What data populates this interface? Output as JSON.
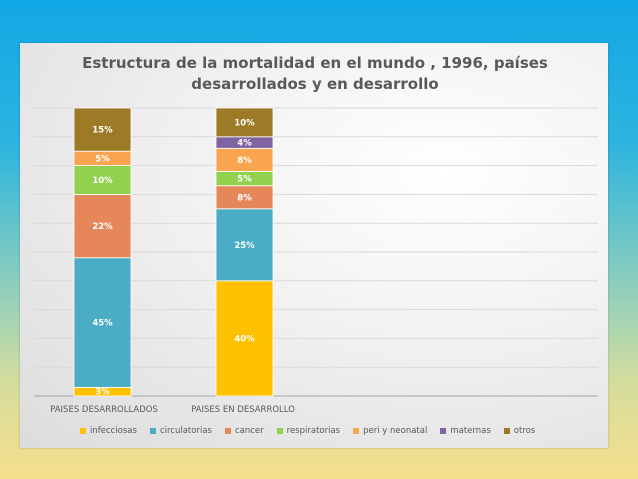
{
  "chart_data": {
    "type": "bar",
    "stacked": true,
    "title": "Estructura de la mortalidad en el mundo , 1996, países desarrollados y en desarrollo",
    "title_lines": [
      "Estructura de la mortalidad en el mundo , 1996, países",
      "desarrollados y en desarrollo"
    ],
    "categories": [
      "PAISES DESARROLLADOS",
      "PAISES EN DESARROLLO"
    ],
    "ylim": [
      0,
      100
    ],
    "grid": true,
    "legend_position": "bottom",
    "series": [
      {
        "name": "infecciosas",
        "color": "#ffc000",
        "values": [
          3,
          40
        ],
        "labels": [
          "3%",
          "40%"
        ]
      },
      {
        "name": "circulatorias",
        "color": "#4bacc6",
        "values": [
          45,
          25
        ],
        "labels": [
          "45%",
          "25%"
        ]
      },
      {
        "name": "cancer",
        "color": "#e6875a",
        "values": [
          22,
          8
        ],
        "labels": [
          "22%",
          "8%"
        ]
      },
      {
        "name": "respiratorias",
        "color": "#92d050",
        "values": [
          10,
          5
        ],
        "labels": [
          "10%",
          "5%"
        ]
      },
      {
        "name": "peri y neonatal",
        "color": "#f9a44e",
        "values": [
          5,
          8
        ],
        "labels": [
          "5%",
          "8%"
        ]
      },
      {
        "name": "maternas",
        "color": "#8064a2",
        "values": [
          0,
          4
        ],
        "labels": [
          "",
          "4%"
        ]
      },
      {
        "name": "otros",
        "color": "#9c7a26",
        "values": [
          15,
          10
        ],
        "labels": [
          "15%",
          "10%"
        ]
      }
    ]
  }
}
